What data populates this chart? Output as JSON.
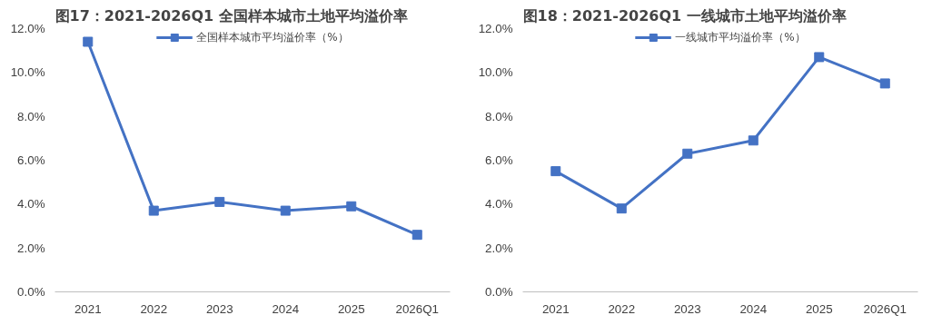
{
  "chart_data": [
    {
      "type": "line",
      "title": "图17：2021-2026Q1 全国样本城市土地平均溢价率",
      "categories": [
        "2021",
        "2022",
        "2023",
        "2024",
        "2025",
        "2026Q1"
      ],
      "series": [
        {
          "name": "全国样本城市平均溢价率（%）",
          "color": "#4472c4",
          "values": [
            11.4,
            3.7,
            4.1,
            3.7,
            3.9,
            2.6
          ]
        }
      ],
      "ylim": [
        0,
        12
      ],
      "yticks": [
        {
          "value": 0,
          "label": "0.0%"
        },
        {
          "value": 2,
          "label": "2.0%"
        },
        {
          "value": 4,
          "label": "4.0%"
        },
        {
          "value": 6,
          "label": "6.0%"
        },
        {
          "value": 8,
          "label": "8.0%"
        },
        {
          "value": 10,
          "label": "10.0%"
        },
        {
          "value": 12,
          "label": "12.0%"
        }
      ],
      "legend": "top",
      "marker": "square",
      "line_style": "solid"
    },
    {
      "type": "line",
      "title": "图18：2021-2026Q1 一线城市土地平均溢价率",
      "categories": [
        "2021",
        "2022",
        "2023",
        "2024",
        "2025",
        "2026Q1"
      ],
      "series": [
        {
          "name": "一线城市平均溢价率（%）",
          "color": "#4472c4",
          "values": [
            5.5,
            3.8,
            6.3,
            6.9,
            10.7,
            9.5
          ]
        }
      ],
      "ylim": [
        0,
        12
      ],
      "yticks": [
        {
          "value": 0,
          "label": "0.0%"
        },
        {
          "value": 2,
          "label": "2.0%"
        },
        {
          "value": 4,
          "label": "4.0%"
        },
        {
          "value": 6,
          "label": "6.0%"
        },
        {
          "value": 8,
          "label": "8.0%"
        },
        {
          "value": 10,
          "label": "10.0%"
        },
        {
          "value": 12,
          "label": "12.0%"
        }
      ],
      "legend": "top",
      "marker": "square",
      "line_style": "solid"
    }
  ]
}
